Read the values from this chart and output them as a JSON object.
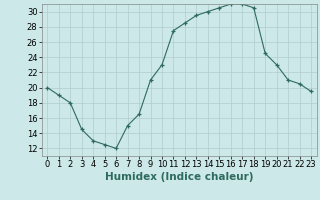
{
  "x": [
    0,
    1,
    2,
    3,
    4,
    5,
    6,
    7,
    8,
    9,
    10,
    11,
    12,
    13,
    14,
    15,
    16,
    17,
    18,
    19,
    20,
    21,
    22,
    23
  ],
  "y": [
    20,
    19,
    18,
    14.5,
    13,
    12.5,
    12,
    15,
    16.5,
    21,
    23,
    27.5,
    28.5,
    29.5,
    30,
    30.5,
    31,
    31,
    30.5,
    24.5,
    23,
    21,
    20.5,
    19.5
  ],
  "xlabel": "Humidex (Indice chaleur)",
  "xlim": [
    -0.5,
    23.5
  ],
  "ylim": [
    11,
    31
  ],
  "yticks": [
    12,
    14,
    16,
    18,
    20,
    22,
    24,
    26,
    28,
    30
  ],
  "xticks": [
    0,
    1,
    2,
    3,
    4,
    5,
    6,
    7,
    8,
    9,
    10,
    11,
    12,
    13,
    14,
    15,
    16,
    17,
    18,
    19,
    20,
    21,
    22,
    23
  ],
  "line_color": "#2e6b5e",
  "marker": "+",
  "bg_color": "#cce8e8",
  "grid_color": "#b0cccc",
  "label_fontsize": 7.5,
  "tick_fontsize": 6
}
